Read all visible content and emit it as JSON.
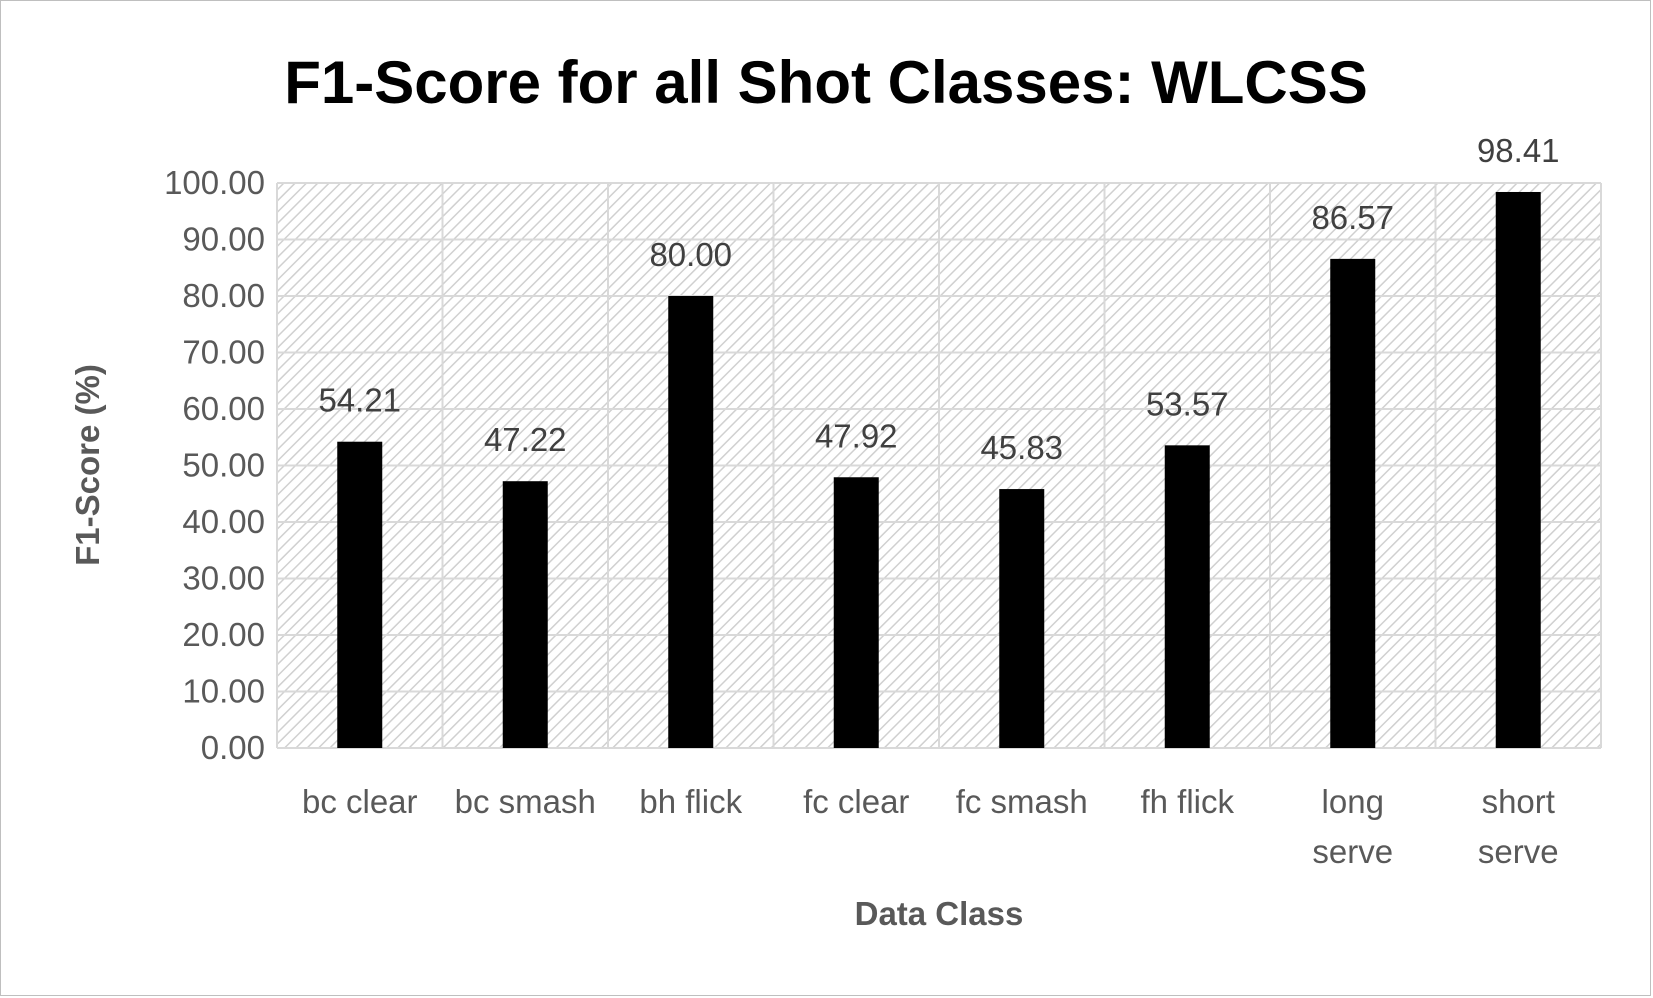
{
  "chart_data": {
    "type": "bar",
    "title": "F1-Score for all Shot Classes: WLCSS",
    "xlabel": "Data Class",
    "ylabel": "F1-Score (%)",
    "categories": [
      [
        "bc clear"
      ],
      [
        "bc smash"
      ],
      [
        "bh flick"
      ],
      [
        "fc clear"
      ],
      [
        "fc smash"
      ],
      [
        "fh flick"
      ],
      [
        "long",
        "serve"
      ],
      [
        "short",
        "serve"
      ]
    ],
    "values": [
      54.21,
      47.22,
      80.0,
      47.92,
      45.83,
      53.57,
      86.57,
      98.41
    ],
    "value_labels": [
      "54.21",
      "47.22",
      "80.00",
      "47.92",
      "45.83",
      "53.57",
      "86.57",
      "98.41"
    ],
    "ylim": [
      0,
      100
    ],
    "y_ticks": [
      0,
      10,
      20,
      30,
      40,
      50,
      60,
      70,
      80,
      90,
      100
    ],
    "y_tick_labels": [
      "0.00",
      "10.00",
      "20.00",
      "30.00",
      "40.00",
      "50.00",
      "60.00",
      "70.00",
      "80.00",
      "90.00",
      "100.00"
    ],
    "grid": true,
    "legend": "none",
    "colors": {
      "bar": "#000000",
      "gridline": "#d9d9d9",
      "plot_hatch": "#d0d0d0",
      "text": "#595959",
      "title": "#000000"
    }
  }
}
